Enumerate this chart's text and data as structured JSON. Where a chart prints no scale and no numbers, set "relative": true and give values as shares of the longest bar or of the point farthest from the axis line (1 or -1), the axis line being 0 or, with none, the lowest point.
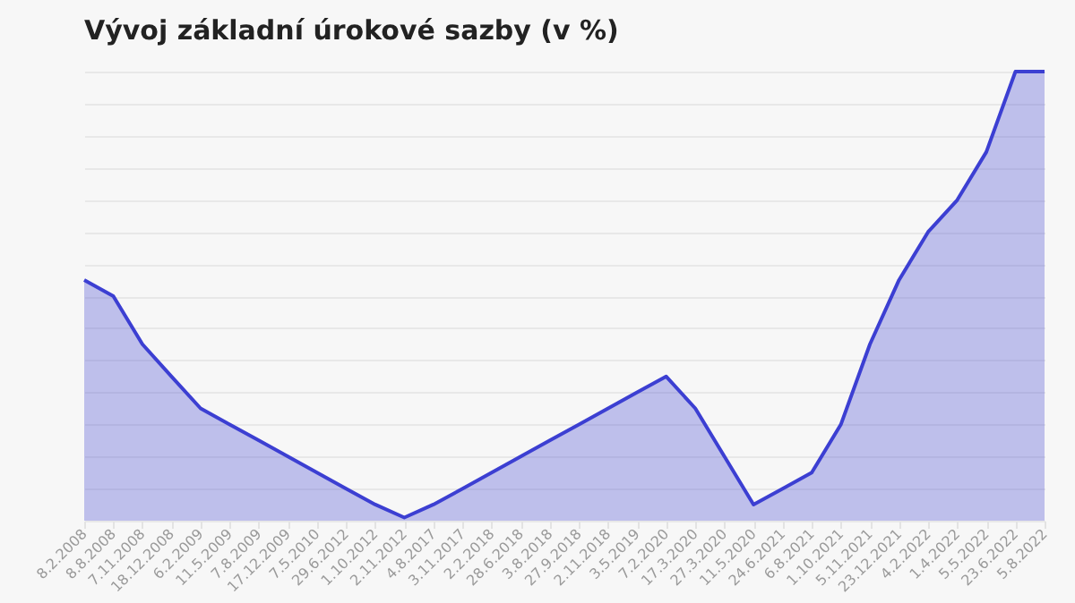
{
  "chart_data": {
    "type": "area",
    "title": "Vývoj základní úrokové sazby (v %)",
    "relative": true,
    "grid": "y",
    "categories": [
      "8.2.2008",
      "8.8.2008",
      "7.11.2008",
      "18.12.2008",
      "6.2.2009",
      "11.5.2009",
      "7.8.2009",
      "17.12.2009",
      "7.5.2010",
      "29.6.2012",
      "1.10.2012",
      "2.11.2012",
      "4.8.2017",
      "3.11.2017",
      "2.2.2018",
      "28.6.2018",
      "3.8.2018",
      "27.9.2018",
      "2.11.2018",
      "3.5.2019",
      "7.2.2020",
      "17.3.2020",
      "27.3.2020",
      "11.5.2020",
      "24.6.2021",
      "6.8.2021",
      "1.10.2021",
      "5.11.2021",
      "23.12.2021",
      "4.2.2022",
      "1.4.2022",
      "5.5.2022",
      "23.6.2022",
      "5.8.2022"
    ],
    "series": [
      {
        "color": "#3c3fd2",
        "values": [
          0.536,
          0.5,
          0.393,
          0.321,
          0.25,
          0.214,
          0.179,
          0.143,
          0.107,
          0.071,
          0.036,
          0.007,
          0.036,
          0.071,
          0.107,
          0.143,
          0.179,
          0.214,
          0.25,
          0.286,
          0.321,
          0.25,
          0.143,
          0.036,
          0.071,
          0.107,
          0.214,
          0.393,
          0.536,
          0.643,
          0.714,
          0.821,
          1,
          1
        ]
      }
    ]
  }
}
